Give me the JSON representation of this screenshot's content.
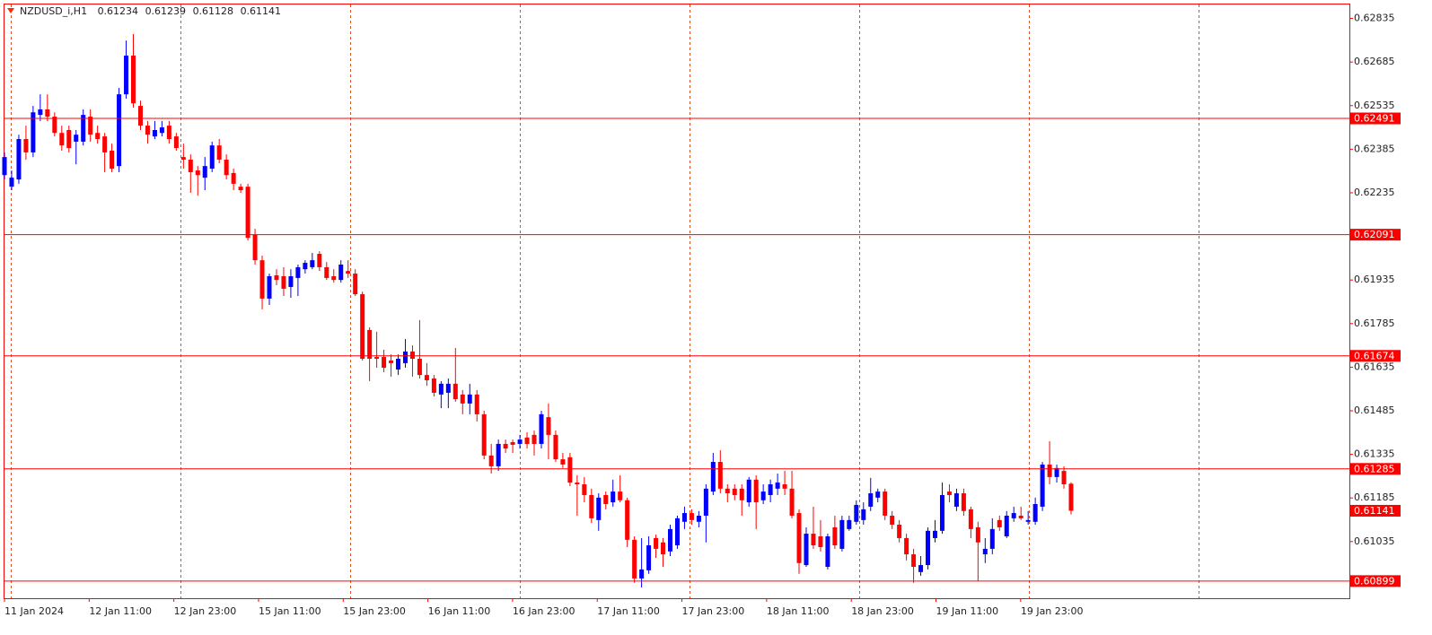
{
  "chart_data": {
    "type": "candlestick",
    "title": "NZDUSD_i,H1",
    "categories": [
      "11 Jan 2024",
      null,
      null,
      null,
      null,
      null,
      null,
      null,
      null,
      null,
      null,
      null,
      "12 Jan 11:00",
      null,
      null,
      null,
      null,
      null,
      null,
      null,
      null,
      null,
      null,
      null,
      "12 Jan 23:00",
      null,
      null,
      null,
      null,
      null,
      null,
      null,
      null,
      null,
      null,
      null,
      "15 Jan 11:00",
      null,
      null,
      null,
      null,
      null,
      null,
      null,
      null,
      null,
      null,
      null,
      "15 Jan 23:00",
      null,
      null,
      null,
      null,
      null,
      null,
      null,
      null,
      null,
      null,
      null,
      "16 Jan 11:00",
      null,
      null,
      null,
      null,
      null,
      null,
      null,
      null,
      null,
      null,
      null,
      "16 Jan 23:00",
      null,
      null,
      null,
      null,
      null,
      null,
      null,
      null,
      null,
      null,
      null,
      "17 Jan 11:00",
      null,
      null,
      null,
      null,
      null,
      null,
      null,
      null,
      null,
      null,
      null,
      "17 Jan 23:00",
      null,
      null,
      null,
      null,
      null,
      null,
      null,
      null,
      null,
      null,
      null,
      "18 Jan 11:00",
      null,
      null,
      null,
      null,
      null,
      null,
      null,
      null,
      null,
      null,
      null,
      "18 Jan 23:00",
      null,
      null,
      null,
      null,
      null,
      null,
      null,
      null,
      null,
      null,
      null,
      "19 Jan 11:00",
      null,
      null,
      null,
      null,
      null,
      null,
      null,
      null,
      null,
      null,
      null,
      "19 Jan 23:00",
      null,
      null,
      null,
      null,
      null
    ],
    "open": [
      0.62296,
      0.62256,
      0.62281,
      0.6242,
      0.62374,
      0.62503,
      0.62522,
      0.62497,
      0.62441,
      0.62451,
      0.62411,
      0.62411,
      0.62497,
      0.62441,
      0.62429,
      0.6238,
      0.62327,
      0.62574,
      0.62707,
      0.62534,
      0.62466,
      0.62429,
      0.62441,
      0.62466,
      0.62429,
      0.62358,
      0.62349,
      0.62312,
      0.62287,
      0.62318,
      0.62398,
      0.62349,
      0.62303,
      0.62256,
      0.62256,
      0.6209,
      0.62003,
      0.61871,
      0.61951,
      0.61948,
      0.61911,
      0.61942,
      0.61972,
      0.61979,
      0.62025,
      0.61979,
      0.61948,
      0.61935,
      0.61966,
      0.61957,
      0.61886,
      0.61763,
      0.6167,
      0.6167,
      0.61658,
      0.61627,
      0.61649,
      0.61689,
      0.61664,
      0.61608,
      0.61596,
      0.61541,
      0.61547,
      0.61578,
      0.61541,
      0.6151,
      0.61541,
      0.61473,
      0.61331,
      0.61294,
      0.61371,
      0.61377,
      0.61371,
      0.61393,
      0.61402,
      0.61371,
      0.61463,
      0.61402,
      0.61318,
      0.61325,
      0.61238,
      0.61232,
      0.61195,
      0.61109,
      0.61195,
      0.6117,
      0.61207,
      0.61177,
      0.61041,
      0.60908,
      0.60936,
      0.61047,
      0.61032,
      0.61001,
      0.61022,
      0.61103,
      0.61133,
      0.61103,
      0.61124,
      0.61207,
      0.61309,
      0.61217,
      0.61217,
      0.61217,
      0.6117,
      0.61248,
      0.61177,
      0.61195,
      0.61217,
      0.61232,
      0.61217,
      0.61133,
      0.60954,
      0.61062,
      0.61053,
      0.60948,
      0.61084,
      0.6101,
      0.61078,
      0.61103,
      0.61109,
      0.61155,
      0.61186,
      0.61207,
      0.61124,
      0.61093,
      0.61047,
      0.60991,
      0.6093,
      0.60954,
      0.61047,
      0.61072,
      0.61207,
      0.61155,
      0.61201,
      0.61146,
      0.61084,
      0.60991,
      0.6101,
      0.61109,
      0.61053,
      0.61115,
      0.61124,
      0.61103,
      0.61103,
      0.61155,
      0.613,
      0.61257,
      0.61278,
      0.61234
    ],
    "high": [
      0.62374,
      0.62312,
      0.62435,
      0.62466,
      0.62534,
      0.62574,
      0.62574,
      0.62512,
      0.62466,
      0.62466,
      0.62451,
      0.62522,
      0.62522,
      0.62466,
      0.62441,
      0.62404,
      0.62596,
      0.62759,
      0.62781,
      0.62552,
      0.62482,
      0.62482,
      0.62482,
      0.62482,
      0.62441,
      0.62404,
      0.62367,
      0.62327,
      0.62358,
      0.62411,
      0.6242,
      0.62367,
      0.62318,
      0.62266,
      0.62266,
      0.62111,
      0.62019,
      0.61957,
      0.61972,
      0.61979,
      0.61972,
      0.61988,
      0.62003,
      0.62028,
      0.62034,
      0.61997,
      0.61972,
      0.62003,
      0.62003,
      0.61972,
      0.61895,
      0.61772,
      0.61757,
      0.61695,
      0.61679,
      0.61679,
      0.61732,
      0.6171,
      0.61797,
      0.61649,
      0.61608,
      0.61587,
      0.61596,
      0.61701,
      0.61556,
      0.61578,
      0.61556,
      0.61485,
      0.61371,
      0.61386,
      0.61386,
      0.61386,
      0.61402,
      0.61411,
      0.61417,
      0.61485,
      0.6151,
      0.61417,
      0.6134,
      0.6134,
      0.61263,
      0.61257,
      0.61217,
      0.61201,
      0.61207,
      0.61248,
      0.61263,
      0.61186,
      0.61053,
      0.61047,
      0.61053,
      0.61059,
      0.61047,
      0.61093,
      0.61124,
      0.61155,
      0.61146,
      0.6114,
      0.61232,
      0.6134,
      0.61349,
      0.61232,
      0.61232,
      0.61232,
      0.61257,
      0.61263,
      0.61232,
      0.61248,
      0.61269,
      0.61278,
      0.61278,
      0.61146,
      0.61084,
      0.61155,
      0.61109,
      0.61062,
      0.61124,
      0.61124,
      0.61124,
      0.61177,
      0.6117,
      0.61254,
      0.61217,
      0.61217,
      0.6114,
      0.61109,
      0.61062,
      0.6101,
      0.60985,
      0.61084,
      0.61109,
      0.61238,
      0.61232,
      0.61217,
      0.61217,
      0.61155,
      0.61103,
      0.61047,
      0.61115,
      0.61124,
      0.6114,
      0.61155,
      0.61155,
      0.6114,
      0.61186,
      0.61309,
      0.6138,
      0.613,
      0.61294,
      0.61239
    ],
    "low": [
      0.62281,
      0.62244,
      0.62266,
      0.62349,
      0.62358,
      0.62482,
      0.62482,
      0.62429,
      0.6238,
      0.62374,
      0.62333,
      0.62398,
      0.62411,
      0.62404,
      0.62306,
      0.62306,
      0.62306,
      0.62559,
      0.62528,
      0.62451,
      0.62404,
      0.6242,
      0.62429,
      0.62404,
      0.6238,
      0.62318,
      0.62235,
      0.62225,
      0.62244,
      0.62306,
      0.62337,
      0.62281,
      0.62244,
      0.62235,
      0.62071,
      0.61988,
      0.61834,
      0.61849,
      0.61917,
      0.6188,
      0.61874,
      0.6188,
      0.61957,
      0.61972,
      0.61966,
      0.61935,
      0.61926,
      0.61926,
      0.61942,
      0.6188,
      0.61658,
      0.61587,
      0.61633,
      0.61618,
      0.61602,
      0.61608,
      0.61633,
      0.61602,
      0.61596,
      0.61571,
      0.61534,
      0.61494,
      0.61494,
      0.61516,
      0.61473,
      0.61473,
      0.61448,
      0.61318,
      0.61269,
      0.61278,
      0.6134,
      0.6134,
      0.61355,
      0.61355,
      0.61331,
      0.61355,
      0.61318,
      0.61309,
      0.61288,
      0.61226,
      0.61124,
      0.6117,
      0.61099,
      0.61072,
      0.61146,
      0.61155,
      0.6117,
      0.61016,
      0.60893,
      0.60877,
      0.60924,
      0.60979,
      0.60948,
      0.60985,
      0.6101,
      0.61078,
      0.61093,
      0.61084,
      0.61032,
      0.61195,
      0.61201,
      0.6117,
      0.61177,
      0.61124,
      0.61155,
      0.61078,
      0.61164,
      0.6117,
      0.61195,
      0.61195,
      0.61115,
      0.60924,
      0.60948,
      0.6101,
      0.61001,
      0.60939,
      0.6101,
      0.61001,
      0.61072,
      0.61093,
      0.61093,
      0.6114,
      0.6117,
      0.61109,
      0.61078,
      0.61032,
      0.6097,
      0.60893,
      0.60917,
      0.60939,
      0.61032,
      0.61062,
      0.6117,
      0.6114,
      0.61124,
      0.61047,
      0.60899,
      0.60961,
      0.60991,
      0.61072,
      0.61047,
      0.61103,
      0.61109,
      0.61093,
      0.61093,
      0.6114,
      0.61232,
      0.61238,
      0.61217,
      0.61128
    ],
    "close": [
      0.62358,
      0.62287,
      0.6242,
      0.62374,
      0.62512,
      0.62522,
      0.62497,
      0.62441,
      0.62398,
      0.62389,
      0.62435,
      0.62503,
      0.62435,
      0.6242,
      0.62374,
      0.62318,
      0.62574,
      0.62707,
      0.62543,
      0.62466,
      0.62435,
      0.62451,
      0.6246,
      0.6242,
      0.62389,
      0.62349,
      0.62306,
      0.62296,
      0.62327,
      0.62398,
      0.62349,
      0.62296,
      0.62266,
      0.62244,
      0.6208,
      0.62003,
      0.61871,
      0.61948,
      0.61935,
      0.61905,
      0.61948,
      0.61979,
      0.61994,
      0.62003,
      0.61979,
      0.61942,
      0.61935,
      0.61988,
      0.61957,
      0.61886,
      0.61664,
      0.61664,
      0.61664,
      0.61633,
      0.61649,
      0.61664,
      0.61689,
      0.61664,
      0.61608,
      0.6159,
      0.61547,
      0.61578,
      0.61578,
      0.61525,
      0.6151,
      0.61541,
      0.61473,
      0.61331,
      0.61294,
      0.61371,
      0.61355,
      0.61368,
      0.61386,
      0.61371,
      0.61371,
      0.61473,
      0.61402,
      0.61318,
      0.613,
      0.61238,
      0.61232,
      0.61195,
      0.61115,
      0.61186,
      0.61164,
      0.61207,
      0.61177,
      0.61041,
      0.60908,
      0.60939,
      0.61022,
      0.6101,
      0.60991,
      0.61078,
      0.61115,
      0.61133,
      0.61109,
      0.61124,
      0.61217,
      0.61309,
      0.61217,
      0.61201,
      0.61195,
      0.61177,
      0.61248,
      0.6117,
      0.61207,
      0.61232,
      0.61238,
      0.61217,
      0.61124,
      0.60961,
      0.61062,
      0.61022,
      0.61016,
      0.61053,
      0.61022,
      0.61109,
      0.61109,
      0.61161,
      0.61146,
      0.61201,
      0.61207,
      0.61124,
      0.61093,
      0.61047,
      0.60991,
      0.60948,
      0.60954,
      0.61072,
      0.61072,
      0.61195,
      0.61195,
      0.61201,
      0.6114,
      0.61078,
      0.61032,
      0.6101,
      0.61078,
      0.61084,
      0.61124,
      0.61133,
      0.61115,
      0.61109,
      0.61164,
      0.613,
      0.61257,
      0.61288,
      0.61232,
      0.61141
    ],
    "up_color": "#0000ff",
    "down_color": "#ff0000",
    "ylim": [
      0.6084,
      0.62883
    ],
    "yticks": [
      0.62835,
      0.62685,
      0.62535,
      0.62385,
      0.62235,
      0.61935,
      0.61785,
      0.61635,
      0.61485,
      0.61335,
      0.61185,
      0.61035
    ],
    "levels": [
      0.62491,
      0.62091,
      0.61674,
      0.61285,
      0.60899
    ],
    "level_color": "#ff0000",
    "grid": true
  }
}
